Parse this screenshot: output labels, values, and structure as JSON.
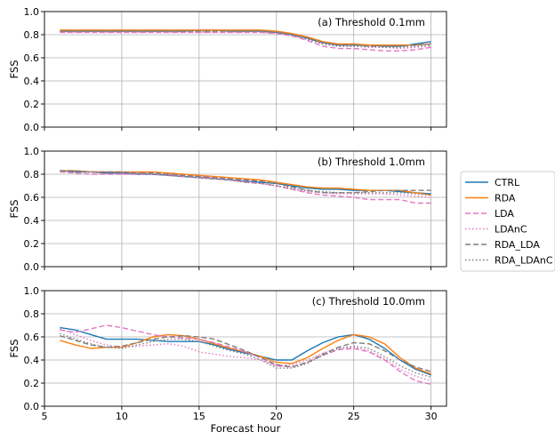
{
  "chart_data": [
    {
      "type": "line",
      "title": "(a) Threshold 0.1mm",
      "xlabel": "",
      "ylabel": "FSS",
      "xlim": [
        5,
        31
      ],
      "ylim": [
        0,
        1
      ],
      "yticks": [
        "0.0",
        "0.2",
        "0.4",
        "0.6",
        "0.8",
        "1.0"
      ],
      "xticks": [
        "5",
        "10",
        "15",
        "20",
        "25",
        "30"
      ],
      "grid": true,
      "x": [
        6,
        7,
        8,
        9,
        10,
        11,
        12,
        13,
        14,
        15,
        16,
        17,
        18,
        19,
        20,
        21,
        22,
        23,
        24,
        25,
        26,
        27,
        28,
        29,
        30
      ],
      "series": [
        {
          "name": "CTRL",
          "color": "#1f77b4",
          "dash": "solid",
          "values": [
            0.83,
            0.83,
            0.83,
            0.83,
            0.83,
            0.83,
            0.83,
            0.83,
            0.83,
            0.84,
            0.84,
            0.83,
            0.83,
            0.83,
            0.82,
            0.8,
            0.77,
            0.73,
            0.71,
            0.71,
            0.71,
            0.7,
            0.7,
            0.72,
            0.74
          ]
        },
        {
          "name": "RDA",
          "color": "#ff7f0e",
          "dash": "solid",
          "values": [
            0.84,
            0.84,
            0.84,
            0.84,
            0.84,
            0.84,
            0.84,
            0.84,
            0.84,
            0.84,
            0.84,
            0.84,
            0.84,
            0.84,
            0.83,
            0.81,
            0.78,
            0.74,
            0.72,
            0.72,
            0.71,
            0.71,
            0.71,
            0.71,
            0.72
          ]
        },
        {
          "name": "LDA",
          "color": "#e377c2",
          "dash": "dashed",
          "values": [
            0.82,
            0.82,
            0.82,
            0.82,
            0.82,
            0.82,
            0.82,
            0.82,
            0.82,
            0.82,
            0.82,
            0.82,
            0.82,
            0.82,
            0.81,
            0.79,
            0.75,
            0.7,
            0.68,
            0.68,
            0.67,
            0.66,
            0.66,
            0.67,
            0.69
          ]
        },
        {
          "name": "LDAnC",
          "color": "#e377c2",
          "dash": "dotted",
          "values": [
            0.82,
            0.82,
            0.82,
            0.82,
            0.82,
            0.82,
            0.82,
            0.82,
            0.82,
            0.82,
            0.82,
            0.82,
            0.82,
            0.82,
            0.81,
            0.79,
            0.76,
            0.72,
            0.7,
            0.7,
            0.69,
            0.69,
            0.68,
            0.69,
            0.7
          ]
        },
        {
          "name": "RDA_LDA",
          "color": "#7f7f7f",
          "dash": "dashed",
          "values": [
            0.83,
            0.83,
            0.83,
            0.83,
            0.83,
            0.83,
            0.83,
            0.83,
            0.83,
            0.83,
            0.83,
            0.83,
            0.83,
            0.83,
            0.82,
            0.8,
            0.77,
            0.73,
            0.71,
            0.71,
            0.7,
            0.7,
            0.7,
            0.71,
            0.72
          ]
        },
        {
          "name": "RDA_LDAnC",
          "color": "#7f7f7f",
          "dash": "dotted",
          "values": [
            0.83,
            0.83,
            0.83,
            0.83,
            0.83,
            0.83,
            0.83,
            0.83,
            0.83,
            0.83,
            0.83,
            0.83,
            0.83,
            0.83,
            0.82,
            0.8,
            0.76,
            0.72,
            0.7,
            0.7,
            0.7,
            0.69,
            0.69,
            0.7,
            0.71
          ]
        }
      ]
    },
    {
      "type": "line",
      "title": "(b) Threshold 1.0mm",
      "xlabel": "",
      "ylabel": "FSS",
      "xlim": [
        5,
        31
      ],
      "ylim": [
        0,
        1
      ],
      "yticks": [
        "0.0",
        "0.2",
        "0.4",
        "0.6",
        "0.8",
        "1.0"
      ],
      "xticks": [
        "5",
        "10",
        "15",
        "20",
        "25",
        "30"
      ],
      "grid": true,
      "x": [
        6,
        7,
        8,
        9,
        10,
        11,
        12,
        13,
        14,
        15,
        16,
        17,
        18,
        19,
        20,
        21,
        22,
        23,
        24,
        25,
        26,
        27,
        28,
        29,
        30
      ],
      "series": [
        {
          "name": "CTRL",
          "color": "#1f77b4",
          "dash": "solid",
          "values": [
            0.83,
            0.82,
            0.82,
            0.81,
            0.81,
            0.8,
            0.8,
            0.79,
            0.78,
            0.77,
            0.76,
            0.75,
            0.74,
            0.73,
            0.72,
            0.7,
            0.68,
            0.67,
            0.67,
            0.66,
            0.66,
            0.66,
            0.65,
            0.64,
            0.63
          ]
        },
        {
          "name": "RDA",
          "color": "#ff7f0e",
          "dash": "solid",
          "values": [
            0.83,
            0.83,
            0.82,
            0.82,
            0.82,
            0.82,
            0.82,
            0.81,
            0.8,
            0.79,
            0.78,
            0.77,
            0.76,
            0.75,
            0.73,
            0.71,
            0.69,
            0.68,
            0.68,
            0.67,
            0.66,
            0.66,
            0.66,
            0.64,
            0.62
          ]
        },
        {
          "name": "LDA",
          "color": "#e377c2",
          "dash": "dashed",
          "values": [
            0.82,
            0.81,
            0.8,
            0.8,
            0.8,
            0.8,
            0.8,
            0.79,
            0.78,
            0.77,
            0.76,
            0.75,
            0.73,
            0.72,
            0.7,
            0.67,
            0.64,
            0.62,
            0.61,
            0.6,
            0.58,
            0.58,
            0.58,
            0.55,
            0.55
          ]
        },
        {
          "name": "LDAnC",
          "color": "#e377c2",
          "dash": "dotted",
          "values": [
            0.83,
            0.82,
            0.82,
            0.82,
            0.81,
            0.81,
            0.81,
            0.8,
            0.79,
            0.78,
            0.77,
            0.75,
            0.74,
            0.72,
            0.7,
            0.67,
            0.65,
            0.64,
            0.63,
            0.63,
            0.63,
            0.63,
            0.62,
            0.61,
            0.6
          ]
        },
        {
          "name": "RDA_LDA",
          "color": "#7f7f7f",
          "dash": "dashed",
          "values": [
            0.83,
            0.83,
            0.82,
            0.82,
            0.82,
            0.81,
            0.81,
            0.8,
            0.79,
            0.78,
            0.77,
            0.76,
            0.75,
            0.74,
            0.72,
            0.69,
            0.66,
            0.64,
            0.64,
            0.64,
            0.65,
            0.66,
            0.66,
            0.66,
            0.66
          ]
        },
        {
          "name": "RDA_LDAnC",
          "color": "#7f7f7f",
          "dash": "dotted",
          "values": [
            0.83,
            0.82,
            0.82,
            0.82,
            0.81,
            0.81,
            0.8,
            0.79,
            0.78,
            0.77,
            0.76,
            0.75,
            0.73,
            0.72,
            0.7,
            0.68,
            0.66,
            0.65,
            0.64,
            0.64,
            0.64,
            0.64,
            0.64,
            0.63,
            0.62
          ]
        }
      ]
    },
    {
      "type": "line",
      "title": "(c) Threshold 10.0mm",
      "xlabel": "Forecast hour",
      "ylabel": "FSS",
      "xlim": [
        5,
        31
      ],
      "ylim": [
        0,
        1
      ],
      "yticks": [
        "0.0",
        "0.2",
        "0.4",
        "0.6",
        "0.8",
        "1.0"
      ],
      "xticks": [
        "5",
        "10",
        "15",
        "20",
        "25",
        "30"
      ],
      "grid": true,
      "x": [
        6,
        7,
        8,
        9,
        10,
        11,
        12,
        13,
        14,
        15,
        16,
        17,
        18,
        19,
        20,
        21,
        22,
        23,
        24,
        25,
        26,
        27,
        28,
        29,
        30
      ],
      "series": [
        {
          "name": "CTRL",
          "color": "#1f77b4",
          "dash": "solid",
          "values": [
            0.68,
            0.66,
            0.62,
            0.58,
            0.58,
            0.58,
            0.57,
            0.56,
            0.56,
            0.56,
            0.53,
            0.49,
            0.46,
            0.43,
            0.4,
            0.4,
            0.48,
            0.55,
            0.6,
            0.62,
            0.58,
            0.5,
            0.4,
            0.32,
            0.27
          ]
        },
        {
          "name": "RDA",
          "color": "#ff7f0e",
          "dash": "solid",
          "values": [
            0.57,
            0.53,
            0.5,
            0.51,
            0.51,
            0.55,
            0.6,
            0.62,
            0.61,
            0.58,
            0.54,
            0.5,
            0.47,
            0.43,
            0.38,
            0.37,
            0.42,
            0.5,
            0.57,
            0.62,
            0.6,
            0.54,
            0.42,
            0.33,
            0.28
          ]
        },
        {
          "name": "LDA",
          "color": "#e377c2",
          "dash": "dashed",
          "values": [
            0.66,
            0.64,
            0.67,
            0.7,
            0.68,
            0.65,
            0.62,
            0.6,
            0.59,
            0.58,
            0.55,
            0.51,
            0.47,
            0.42,
            0.35,
            0.34,
            0.38,
            0.44,
            0.49,
            0.5,
            0.47,
            0.4,
            0.3,
            0.22,
            0.19
          ]
        },
        {
          "name": "LDAnC",
          "color": "#e377c2",
          "dash": "dotted",
          "values": [
            0.67,
            0.62,
            0.57,
            0.53,
            0.51,
            0.52,
            0.53,
            0.54,
            0.52,
            0.47,
            0.45,
            0.43,
            0.42,
            0.4,
            0.35,
            0.36,
            0.4,
            0.46,
            0.5,
            0.51,
            0.48,
            0.41,
            0.32,
            0.26,
            0.22
          ]
        },
        {
          "name": "RDA_LDA",
          "color": "#7f7f7f",
          "dash": "dashed",
          "values": [
            0.61,
            0.57,
            0.53,
            0.51,
            0.52,
            0.55,
            0.58,
            0.6,
            0.61,
            0.6,
            0.58,
            0.53,
            0.48,
            0.42,
            0.36,
            0.34,
            0.38,
            0.45,
            0.51,
            0.55,
            0.54,
            0.48,
            0.4,
            0.34,
            0.3
          ]
        },
        {
          "name": "RDA_LDAnC",
          "color": "#7f7f7f",
          "dash": "dotted",
          "values": [
            0.63,
            0.58,
            0.54,
            0.51,
            0.5,
            0.53,
            0.56,
            0.58,
            0.58,
            0.56,
            0.52,
            0.48,
            0.45,
            0.4,
            0.33,
            0.33,
            0.37,
            0.44,
            0.5,
            0.52,
            0.5,
            0.43,
            0.35,
            0.29,
            0.25
          ]
        }
      ]
    }
  ],
  "legend": {
    "placement": "right",
    "entries": [
      {
        "label": "CTRL",
        "color": "#1f77b4",
        "dash": "solid"
      },
      {
        "label": "RDA",
        "color": "#ff7f0e",
        "dash": "solid"
      },
      {
        "label": "LDA",
        "color": "#e377c2",
        "dash": "dashed"
      },
      {
        "label": "LDAnC",
        "color": "#e377c2",
        "dash": "dotted"
      },
      {
        "label": "RDA_LDA",
        "color": "#7f7f7f",
        "dash": "dashed"
      },
      {
        "label": "RDA_LDAnC",
        "color": "#7f7f7f",
        "dash": "dotted"
      }
    ]
  }
}
